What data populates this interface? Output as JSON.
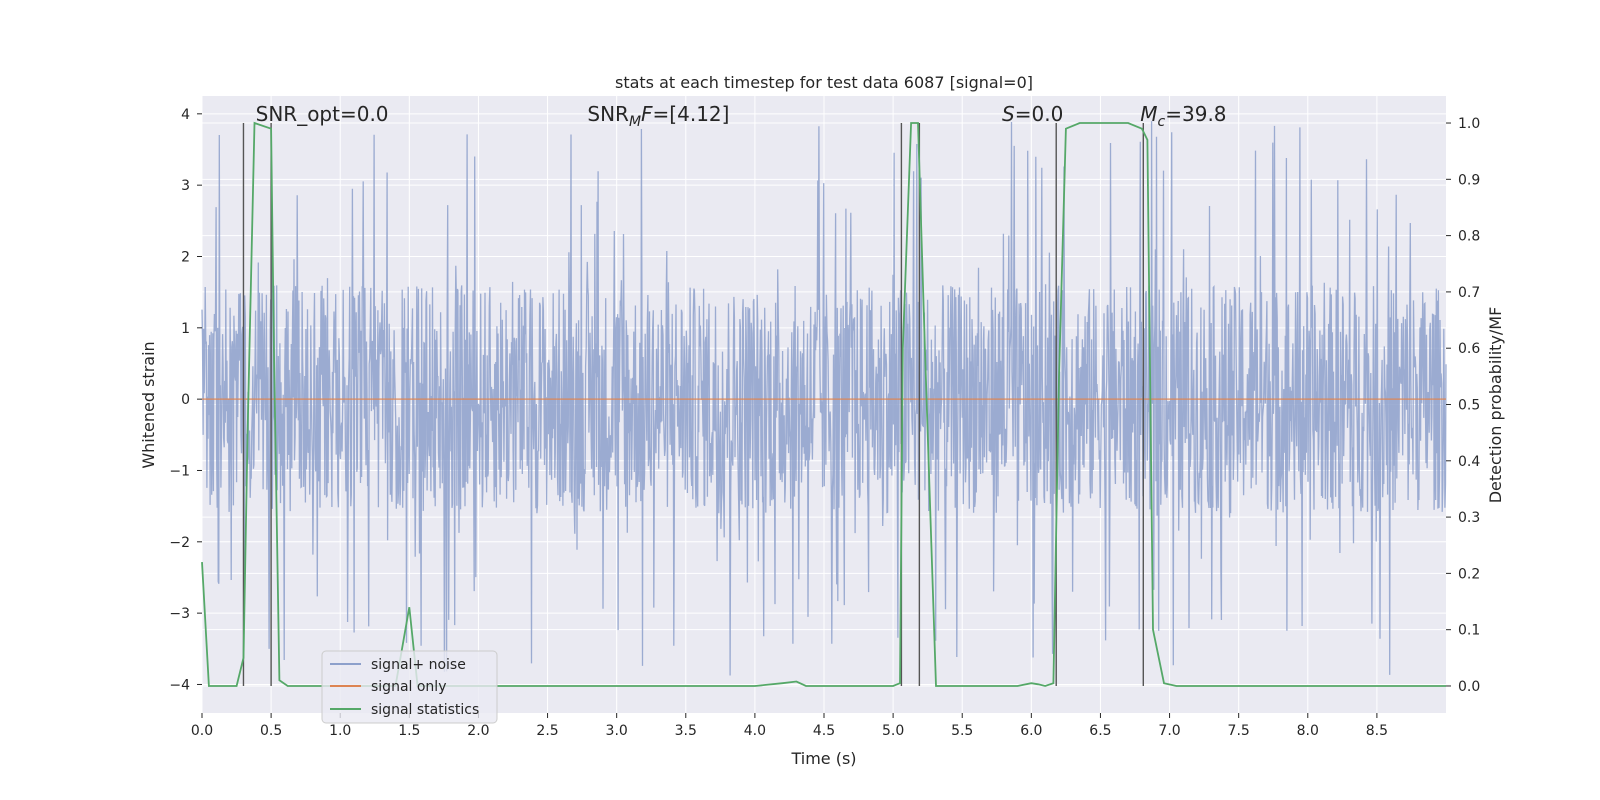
{
  "chart_data": {
    "type": "line",
    "title": "stats at each timestep for test data 6087 [signal=0]",
    "xlabel": "Time (s)",
    "ylabel": "Whitened strain",
    "y2label": "Detection probability/MF",
    "xlim": [
      0,
      9.0
    ],
    "ylim": [
      -4.4,
      4.25
    ],
    "y2lim": [
      -0.048,
      1.048
    ],
    "x_ticks": [
      0.0,
      0.5,
      1.0,
      1.5,
      2.0,
      2.5,
      3.0,
      3.5,
      4.0,
      4.5,
      5.0,
      5.5,
      6.0,
      6.5,
      7.0,
      7.5,
      8.0,
      8.5
    ],
    "x_tick_labels": [
      "0.0",
      "0.5",
      "1.0",
      "1.5",
      "2.0",
      "2.5",
      "3.0",
      "3.5",
      "4.0",
      "4.5",
      "5.0",
      "5.5",
      "6.0",
      "6.5",
      "7.0",
      "7.5",
      "8.0",
      "8.5"
    ],
    "y_ticks": [
      4,
      3,
      2,
      1,
      0,
      -1,
      -2,
      -3,
      -4
    ],
    "y_tick_labels": [
      "4",
      "3",
      "2",
      "1",
      "0",
      "−1",
      "−2",
      "−3",
      "−4"
    ],
    "y2_ticks": [
      1.0,
      0.9,
      0.8,
      0.7,
      0.6,
      0.5,
      0.4,
      0.3,
      0.2,
      0.1,
      0.0
    ],
    "y2_tick_labels": [
      "1.0",
      "0.9",
      "0.8",
      "0.7",
      "0.6",
      "0.5",
      "0.4",
      "0.3",
      "0.2",
      "0.1",
      "0.0"
    ],
    "grid": true,
    "annotations": [
      {
        "html": "SNR_opt=0.0",
        "x": 0.2,
        "y": 3.9
      },
      {
        "html": "SNR<tspan font-size='14' dy='5' font-style='italic'>M</tspan><tspan dy='-5' font-style='italic'>F</tspan>=[4.12]",
        "plain": "SNR_MF=[4.12]",
        "x": 2.6,
        "y": 3.9
      },
      {
        "html": "<tspan font-style='italic'>S</tspan>=0.0",
        "plain": "S=0.0",
        "x": 5.6,
        "y": 3.9
      },
      {
        "html": "<tspan font-style='italic'>M</tspan><tspan font-size='14' dy='5' font-style='italic'>c</tspan><tspan dy='-5'>=39.8</tspan>",
        "plain": "M_c=39.8",
        "x": 6.6,
        "y": 3.9
      }
    ],
    "series": [
      {
        "name": "signal+ noise",
        "color": "#8da0cb",
        "kind": "noise",
        "typical_abs": 1.6,
        "peak_abs": 3.9,
        "n_points": 2300
      },
      {
        "name": "signal only",
        "color": "#dd8452",
        "kind": "constant",
        "value": 0.0
      },
      {
        "name": "signal statistics",
        "color": "#55a868",
        "axis": "y2",
        "x": [
          0.0,
          0.05,
          0.1,
          0.25,
          0.3,
          0.33,
          0.38,
          0.5,
          0.52,
          0.56,
          0.62,
          1.0,
          1.3,
          1.4,
          1.5,
          1.56,
          1.65,
          2.0,
          2.5,
          3.0,
          3.5,
          4.0,
          4.2,
          4.3,
          4.37,
          4.5,
          5.0,
          5.05,
          5.07,
          5.13,
          5.18,
          5.23,
          5.31,
          5.5,
          5.9,
          6.0,
          6.05,
          6.1,
          6.16,
          6.2,
          6.25,
          6.35,
          6.7,
          6.8,
          6.84,
          6.88,
          6.96,
          7.05,
          7.5,
          8.0,
          8.5,
          9.0
        ],
        "y": [
          0.22,
          0.0,
          0.0,
          0.0,
          0.05,
          0.45,
          1.0,
          0.99,
          0.6,
          0.01,
          0.0,
          0.0,
          0.0,
          0.0,
          0.14,
          0.0,
          0.0,
          0.0,
          0.0,
          0.0,
          0.0,
          0.0,
          0.005,
          0.008,
          0.0,
          0.0,
          0.0,
          0.005,
          0.6,
          1.0,
          1.0,
          0.6,
          0.0,
          0.0,
          0.0,
          0.005,
          0.003,
          0.0,
          0.005,
          0.55,
          0.99,
          1.0,
          1.0,
          0.99,
          0.97,
          0.1,
          0.005,
          0.0,
          0.0,
          0.0,
          0.0,
          0.0
        ]
      }
    ],
    "vlines": {
      "color": "#555555",
      "x": [
        0.3,
        0.5,
        5.06,
        5.19,
        6.18,
        6.81
      ],
      "y2_top": 1.0,
      "y2_bottom": 0.0
    },
    "legend": {
      "position": "lower-left",
      "entries": [
        "signal+ noise",
        "signal only",
        "signal statistics"
      ]
    }
  }
}
